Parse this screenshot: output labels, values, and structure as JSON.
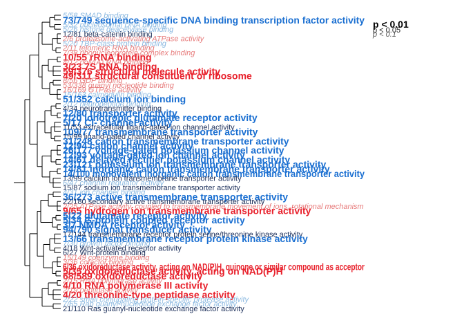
{
  "chart_data": {
    "type": "dendrogram",
    "legend": {
      "placement": "top-right",
      "entries": [
        {
          "label": "p < 0.01",
          "level": "strong"
        },
        {
          "label": "p < 0.05",
          "level": "medium"
        },
        {
          "label": "p < 0.1",
          "level": "weak"
        }
      ]
    },
    "colors": {
      "mf_strong": "#1a6fd1",
      "mf_medium": "#1f5fb8",
      "mf_weak": "#8ab8e0",
      "mf_dim": "#1c2f5a",
      "pos_strong": "#e8202b",
      "pos_weak": "#e77b7b",
      "tree": "#000000"
    },
    "terms": [
      {
        "label": "5/58 SMAD binding",
        "group": "mf",
        "level": "weak"
      },
      {
        "label": "73/749 sequence-specific DNA binding transcription factor activity",
        "group": "mf",
        "level": "strong"
      },
      {
        "label": "5/32 nucleosomal DNA binding",
        "group": "mf",
        "level": "weak"
      },
      {
        "label": "5/26 histone deacetylase binding",
        "group": "mf",
        "level": "weak"
      },
      {
        "label": "12/81 beta-catenin binding",
        "group": "mf",
        "level": "dim"
      },
      {
        "label": "2/6 proteasome-activating ATPase activity",
        "group": "pos",
        "level": "weak"
      },
      {
        "label": "5/20 TBP-class protein binding",
        "group": "mf",
        "level": "weak"
      },
      {
        "label": "2/11 telomeric RNA binding",
        "group": "pos",
        "level": "weak"
      },
      {
        "label": "7/38 ribonucleoprotein complex binding",
        "group": "pos",
        "level": "weak"
      },
      {
        "label": "10/55 rRNA binding",
        "group": "pos",
        "level": "strong"
      },
      {
        "label": "4/12 poly(A) RNA binding",
        "group": "pos",
        "level": "weak"
      },
      {
        "label": "3/23 7S RNA binding",
        "group": "pos",
        "level": "strong"
      },
      {
        "label": "59/376 structural molecule activity",
        "group": "pos",
        "level": "strong"
      },
      {
        "label": "49/311 structural constituent of ribosome",
        "group": "pos",
        "level": "strong"
      },
      {
        "label": "8/56 GDP binding",
        "group": "pos",
        "level": "weak"
      },
      {
        "label": "53/338 guanyl nucleotide binding",
        "group": "pos",
        "level": "weak"
      },
      {
        "label": "16/169 GTPase activity",
        "group": "pos",
        "level": "weak"
      },
      {
        "label": "15/163 calmodulin binding",
        "group": "mf",
        "level": "weak"
      },
      {
        "label": "51/352 calcium ion binding",
        "group": "mf",
        "level": "strong"
      },
      {
        "label": "2/12 neuropeptide binding",
        "group": "mf",
        "level": "weak"
      },
      {
        "label": "4/34 neurotransmitter binding",
        "group": "mf",
        "level": "dim"
      },
      {
        "label": "12/80 transporter activity",
        "group": "mf",
        "level": "strong"
      },
      {
        "label": "7/20 ionotropic glutamate receptor activity",
        "group": "mf",
        "level": "strong"
      },
      {
        "label": "5/17 Cl- channel activity",
        "group": "mf",
        "level": "strong"
      },
      {
        "label": "11/53 extracellular ligand-gated ion channel activity",
        "group": "mf",
        "level": "dim"
      },
      {
        "label": "109/77 transmembrane transporter activity",
        "group": "mf",
        "level": "strong"
      },
      {
        "label": "15/99 ligand-gated channel activity",
        "group": "mf",
        "level": "dim"
      },
      {
        "label": "31/248 cation transmembrane transporter activity",
        "group": "mf",
        "level": "strong"
      },
      {
        "label": "12/94 cation channel activity",
        "group": "mf",
        "level": "strong"
      },
      {
        "label": "26/177 voltage-gated potassium channel activity",
        "group": "mf",
        "level": "strong"
      },
      {
        "label": "12/93 voltage-gated ion channel activity",
        "group": "mf",
        "level": "strong"
      },
      {
        "label": "14/61 delayed rectifier potassium channel activity",
        "group": "mf",
        "level": "strong"
      },
      {
        "label": "23/121 potassium ion transmembrane transporter activity",
        "group": "mf",
        "level": "strong"
      },
      {
        "label": "14/81 inorganic cation transmembrane transporter activity",
        "group": "mf",
        "level": "strong"
      },
      {
        "label": "14/100 monovalent inorganic cation transmembrane transporter activity",
        "group": "mf",
        "level": "strong"
      },
      {
        "label": "13/99 calcium ion transmembrane transporter activity",
        "group": "mf",
        "level": "dim"
      },
      {
        "label": "6/47 channel regulator activity",
        "group": "mf",
        "level": "weak"
      },
      {
        "label": "15/87 sodium ion transmembrane transporter activity",
        "group": "mf",
        "level": "dim"
      },
      {
        "label": "4/31 ion channel binding",
        "group": "mf",
        "level": "weak"
      },
      {
        "label": "36/273 active transmembrane transporter activity",
        "group": "mf",
        "level": "strong"
      },
      {
        "label": "22/180 secondary active transmembrane transporter activity",
        "group": "mf",
        "level": "dim"
      },
      {
        "label": "2/25 ATPase activity, coupled to transmembrane movement of ions, rotational mechanism",
        "group": "pos",
        "level": "weak"
      },
      {
        "label": "9/65 hydrogen ion transmembrane transporter activity",
        "group": "pos",
        "level": "strong"
      },
      {
        "label": "5/22 glutamate receptor activity",
        "group": "mf",
        "level": "strong"
      },
      {
        "label": "5/34 G-protein coupled receptor activity",
        "group": "mf",
        "level": "strong"
      },
      {
        "label": "3/7 NMDA receptor activity",
        "group": "mf",
        "level": "strong"
      },
      {
        "label": "94/790 signal transducer activity",
        "group": "mf",
        "level": "strong"
      },
      {
        "label": "17/144 transmembrane receptor protein serine/threonine kinase activity",
        "group": "mf",
        "level": "dim"
      },
      {
        "label": "13/66 transmembrane receptor protein kinase activity",
        "group": "mf",
        "level": "strong"
      },
      {
        "label": "7/30 growth factor binding",
        "group": "mf",
        "level": "weak"
      },
      {
        "label": "4/18 Wnt-activated receptor activity",
        "group": "mf",
        "level": "dim"
      },
      {
        "label": "6/27 Wnt-protein binding",
        "group": "mf",
        "level": "dim"
      },
      {
        "label": "15/149 coenzyme binding",
        "group": "pos",
        "level": "weak"
      },
      {
        "label": "3/36 cofactor binding",
        "group": "pos",
        "level": "weak"
      },
      {
        "label": "6/36 oxidoreductase activity, acting on NAD(P)H, quinone or similar compound as acceptor",
        "group": "pos",
        "level": "strong"
      },
      {
        "label": "5/35 oxidoreductase activity, acting on NAD(P)H",
        "group": "pos",
        "level": "strong"
      },
      {
        "label": "68/589 oxidoreductase activity",
        "group": "pos",
        "level": "strong"
      },
      {
        "label": "2/15 RNA polymerase activity",
        "group": "pos",
        "level": "weak"
      },
      {
        "label": "4/10 RNA polymerase III activity",
        "group": "pos",
        "level": "strong"
      },
      {
        "label": "2/19 peptidase activity",
        "group": "pos",
        "level": "weak"
      },
      {
        "label": "4/20 threonine-type peptidase activity",
        "group": "pos",
        "level": "strong"
      },
      {
        "label": "2/22 small conjugating protein-specific protease activity",
        "group": "mf",
        "level": "weak"
      },
      {
        "label": "7/65 Rab guanyl-nucleotide exchange factor activity",
        "group": "mf",
        "level": "weak"
      },
      {
        "label": "21/110 Ras guanyl-nucleotide exchange factor activity",
        "group": "mf",
        "level": "dim"
      }
    ]
  }
}
